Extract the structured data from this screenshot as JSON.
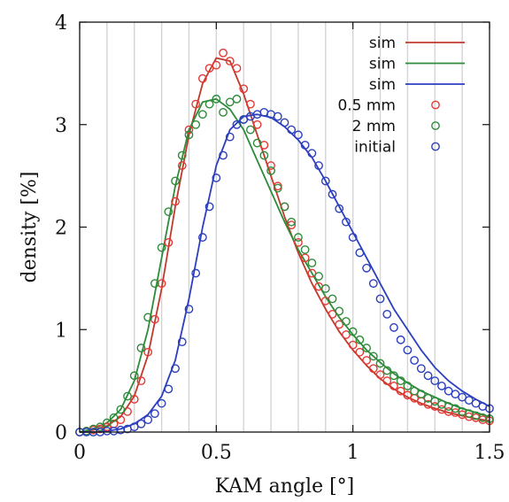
{
  "chart_data": {
    "type": "line",
    "xlabel": "KAM angle [°]",
    "ylabel": "density [%]",
    "xlim": [
      0,
      1.5
    ],
    "ylim": [
      0,
      4
    ],
    "x_ticks": [
      0,
      0.5,
      1,
      1.5
    ],
    "x_tick_labels": [
      "0",
      "0.5",
      "1",
      "1.5"
    ],
    "y_ticks": [
      0,
      1,
      2,
      3,
      4
    ],
    "y_tick_labels": [
      "0",
      "1",
      "2",
      "3",
      "4"
    ],
    "grid": "vertical",
    "grid_x": [
      0.1,
      0.2,
      0.3,
      0.4,
      0.5,
      0.6,
      0.7,
      0.8,
      0.9,
      1.0,
      1.1,
      1.2,
      1.3,
      1.4
    ],
    "legend_position": "top-right",
    "series": [
      {
        "name": "sim",
        "kind": "line",
        "color": "#c0392b",
        "x": [
          0,
          0.05,
          0.1,
          0.15,
          0.2,
          0.25,
          0.3,
          0.35,
          0.4,
          0.45,
          0.5,
          0.55,
          0.6,
          0.65,
          0.7,
          0.75,
          0.8,
          0.85,
          0.9,
          0.95,
          1.0,
          1.05,
          1.1,
          1.15,
          1.2,
          1.25,
          1.3,
          1.35,
          1.4,
          1.45,
          1.5
        ],
        "y": [
          0.0,
          0.02,
          0.06,
          0.15,
          0.35,
          0.75,
          1.4,
          2.2,
          2.9,
          3.4,
          3.65,
          3.62,
          3.3,
          2.9,
          2.5,
          2.1,
          1.75,
          1.45,
          1.2,
          0.98,
          0.8,
          0.65,
          0.52,
          0.42,
          0.34,
          0.28,
          0.23,
          0.19,
          0.16,
          0.13,
          0.11
        ]
      },
      {
        "name": "sim",
        "kind": "line",
        "color": "#2e8b3a",
        "x": [
          0,
          0.05,
          0.1,
          0.15,
          0.2,
          0.25,
          0.3,
          0.35,
          0.4,
          0.45,
          0.5,
          0.55,
          0.6,
          0.65,
          0.7,
          0.75,
          0.8,
          0.85,
          0.9,
          0.95,
          1.0,
          1.05,
          1.1,
          1.15,
          1.2,
          1.25,
          1.3,
          1.35,
          1.4,
          1.45,
          1.5
        ],
        "y": [
          0.0,
          0.03,
          0.09,
          0.22,
          0.5,
          1.0,
          1.7,
          2.4,
          2.95,
          3.22,
          3.25,
          3.15,
          2.95,
          2.65,
          2.35,
          2.05,
          1.78,
          1.55,
          1.32,
          1.12,
          0.95,
          0.8,
          0.68,
          0.57,
          0.48,
          0.4,
          0.34,
          0.28,
          0.23,
          0.19,
          0.15
        ]
      },
      {
        "name": "sim",
        "kind": "line",
        "color": "#2b3fbf",
        "x": [
          0,
          0.05,
          0.1,
          0.15,
          0.2,
          0.25,
          0.3,
          0.35,
          0.4,
          0.45,
          0.5,
          0.55,
          0.6,
          0.65,
          0.7,
          0.75,
          0.8,
          0.85,
          0.9,
          0.95,
          1.0,
          1.05,
          1.1,
          1.15,
          1.2,
          1.25,
          1.3,
          1.35,
          1.4,
          1.45,
          1.5
        ],
        "y": [
          0.0,
          0.0,
          0.01,
          0.03,
          0.08,
          0.17,
          0.35,
          0.7,
          1.3,
          2.0,
          2.6,
          2.95,
          3.08,
          3.1,
          3.07,
          2.98,
          2.85,
          2.68,
          2.45,
          2.2,
          1.95,
          1.7,
          1.45,
          1.2,
          1.0,
          0.8,
          0.63,
          0.5,
          0.4,
          0.32,
          0.25
        ]
      },
      {
        "name": "0.5 mm",
        "kind": "points",
        "color": "#e53935",
        "x": [
          0,
          0.025,
          0.05,
          0.075,
          0.1,
          0.125,
          0.15,
          0.175,
          0.2,
          0.225,
          0.25,
          0.275,
          0.3,
          0.325,
          0.35,
          0.375,
          0.4,
          0.425,
          0.45,
          0.475,
          0.5,
          0.525,
          0.55,
          0.575,
          0.6,
          0.625,
          0.65,
          0.675,
          0.7,
          0.725,
          0.75,
          0.775,
          0.8,
          0.825,
          0.85,
          0.875,
          0.9,
          0.925,
          0.95,
          0.975,
          1.0,
          1.025,
          1.05,
          1.075,
          1.1,
          1.125,
          1.15,
          1.175,
          1.2,
          1.225,
          1.25,
          1.275,
          1.3,
          1.325,
          1.35,
          1.375,
          1.4,
          1.425,
          1.45,
          1.475,
          1.5
        ],
        "y": [
          0.0,
          0.01,
          0.02,
          0.03,
          0.05,
          0.08,
          0.12,
          0.2,
          0.32,
          0.5,
          0.78,
          1.1,
          1.45,
          1.85,
          2.25,
          2.6,
          2.95,
          3.2,
          3.45,
          3.55,
          3.58,
          3.7,
          3.62,
          3.55,
          3.35,
          3.2,
          3.0,
          2.8,
          2.6,
          2.4,
          2.2,
          2.02,
          1.85,
          1.7,
          1.55,
          1.42,
          1.28,
          1.15,
          1.05,
          0.95,
          0.85,
          0.78,
          0.7,
          0.62,
          0.56,
          0.5,
          0.45,
          0.4,
          0.36,
          0.33,
          0.3,
          0.27,
          0.25,
          0.22,
          0.2,
          0.19,
          0.17,
          0.15,
          0.14,
          0.12,
          0.11
        ]
      },
      {
        "name": "2 mm",
        "kind": "points",
        "color": "#2e8b3a",
        "x": [
          0,
          0.025,
          0.05,
          0.075,
          0.1,
          0.125,
          0.15,
          0.175,
          0.2,
          0.225,
          0.25,
          0.275,
          0.3,
          0.325,
          0.35,
          0.375,
          0.4,
          0.425,
          0.45,
          0.475,
          0.5,
          0.525,
          0.55,
          0.575,
          0.6,
          0.625,
          0.65,
          0.675,
          0.7,
          0.725,
          0.75,
          0.775,
          0.8,
          0.825,
          0.85,
          0.875,
          0.9,
          0.925,
          0.95,
          0.975,
          1.0,
          1.025,
          1.05,
          1.075,
          1.1,
          1.125,
          1.15,
          1.175,
          1.2,
          1.225,
          1.25,
          1.275,
          1.3,
          1.325,
          1.35,
          1.375,
          1.4,
          1.425,
          1.45,
          1.475,
          1.5
        ],
        "y": [
          0.0,
          0.01,
          0.03,
          0.05,
          0.09,
          0.14,
          0.22,
          0.35,
          0.55,
          0.82,
          1.12,
          1.45,
          1.8,
          2.15,
          2.45,
          2.7,
          2.9,
          3.0,
          3.1,
          3.2,
          3.25,
          3.12,
          3.22,
          3.25,
          3.05,
          2.95,
          2.82,
          2.7,
          2.55,
          2.38,
          2.2,
          2.05,
          1.9,
          1.78,
          1.65,
          1.52,
          1.4,
          1.3,
          1.18,
          1.08,
          0.98,
          0.9,
          0.82,
          0.74,
          0.67,
          0.6,
          0.55,
          0.5,
          0.45,
          0.4,
          0.37,
          0.33,
          0.3,
          0.27,
          0.25,
          0.23,
          0.2,
          0.18,
          0.16,
          0.14,
          0.13
        ]
      },
      {
        "name": "initial",
        "kind": "points",
        "color": "#2b3fbf",
        "x": [
          0,
          0.025,
          0.05,
          0.075,
          0.1,
          0.125,
          0.15,
          0.175,
          0.2,
          0.225,
          0.25,
          0.275,
          0.3,
          0.325,
          0.35,
          0.375,
          0.4,
          0.425,
          0.45,
          0.475,
          0.5,
          0.525,
          0.55,
          0.575,
          0.6,
          0.625,
          0.65,
          0.675,
          0.7,
          0.725,
          0.75,
          0.775,
          0.8,
          0.825,
          0.85,
          0.875,
          0.9,
          0.925,
          0.95,
          0.975,
          1.0,
          1.025,
          1.05,
          1.075,
          1.1,
          1.125,
          1.15,
          1.175,
          1.2,
          1.225,
          1.25,
          1.275,
          1.3,
          1.325,
          1.35,
          1.375,
          1.4,
          1.425,
          1.45,
          1.475,
          1.5
        ],
        "y": [
          0.0,
          0.0,
          0.0,
          0.0,
          0.01,
          0.01,
          0.02,
          0.03,
          0.05,
          0.08,
          0.12,
          0.18,
          0.28,
          0.42,
          0.62,
          0.88,
          1.2,
          1.55,
          1.9,
          2.2,
          2.48,
          2.7,
          2.88,
          3.0,
          3.05,
          3.08,
          3.1,
          3.12,
          3.1,
          3.08,
          3.02,
          2.95,
          2.9,
          2.8,
          2.72,
          2.6,
          2.45,
          2.32,
          2.18,
          2.05,
          1.9,
          1.75,
          1.6,
          1.45,
          1.3,
          1.15,
          1.02,
          0.9,
          0.8,
          0.7,
          0.62,
          0.55,
          0.5,
          0.45,
          0.4,
          0.37,
          0.34,
          0.31,
          0.28,
          0.25,
          0.23
        ]
      }
    ]
  }
}
